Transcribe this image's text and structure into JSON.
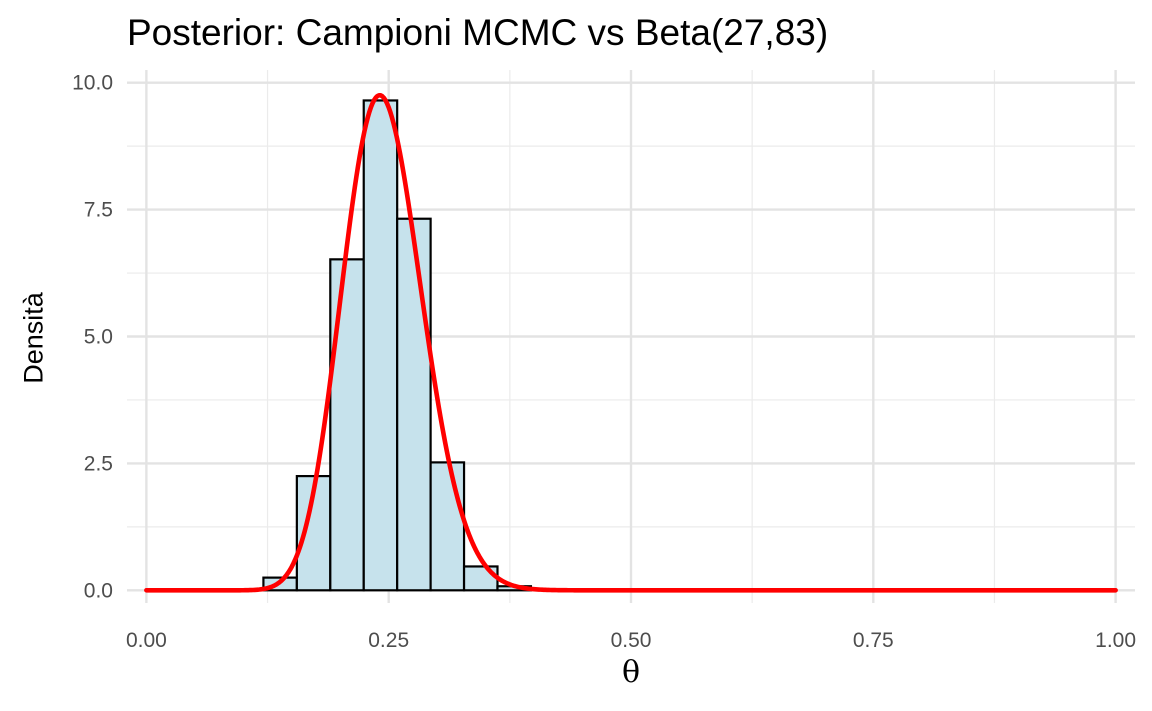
{
  "chart_data": {
    "type": "bar",
    "title": "Posterior: Campioni MCMC vs Beta(27,83)",
    "xlabel": "θ",
    "ylabel": "Densità",
    "xlim": [
      -0.02,
      1.02
    ],
    "ylim": [
      -0.25,
      10.25
    ],
    "x_ticks": [
      0.0,
      0.25,
      0.5,
      0.75,
      1.0
    ],
    "x_tick_labels": [
      "0.00",
      "0.25",
      "0.50",
      "0.75",
      "1.00"
    ],
    "y_ticks": [
      0.0,
      2.5,
      5.0,
      7.5,
      10.0
    ],
    "y_tick_labels": [
      "0.0",
      "2.5",
      "5.0",
      "7.5",
      "10.0"
    ],
    "grid": true,
    "histogram": {
      "fill": "#c6e2ec",
      "stroke": "#000000",
      "bin_width": 0.0345,
      "bin_centers": [
        0.0,
        0.0345,
        0.069,
        0.1035,
        0.138,
        0.1725,
        0.207,
        0.2415,
        0.276,
        0.3105,
        0.345,
        0.3795,
        0.414,
        0.4485,
        0.483,
        0.5175,
        0.552,
        0.5865,
        0.621,
        0.6555,
        0.69,
        0.7245,
        0.759,
        0.7935,
        0.828,
        0.8625,
        0.897,
        0.9315,
        0.966,
        1.0
      ],
      "values": [
        0.0,
        0.0,
        0.0,
        0.0,
        0.25,
        2.25,
        6.52,
        9.65,
        7.32,
        2.52,
        0.47,
        0.08,
        0.0,
        0.0,
        0.0,
        0.0,
        0.0,
        0.0,
        0.0,
        0.0,
        0.0,
        0.0,
        0.0,
        0.0,
        0.0,
        0.0,
        0.0,
        0.0,
        0.0,
        0.0
      ]
    },
    "density_curve": {
      "distribution": "Beta",
      "alpha": 27,
      "beta": 83,
      "x_range": [
        0.0,
        1.0
      ],
      "color": "#ff0000"
    }
  }
}
